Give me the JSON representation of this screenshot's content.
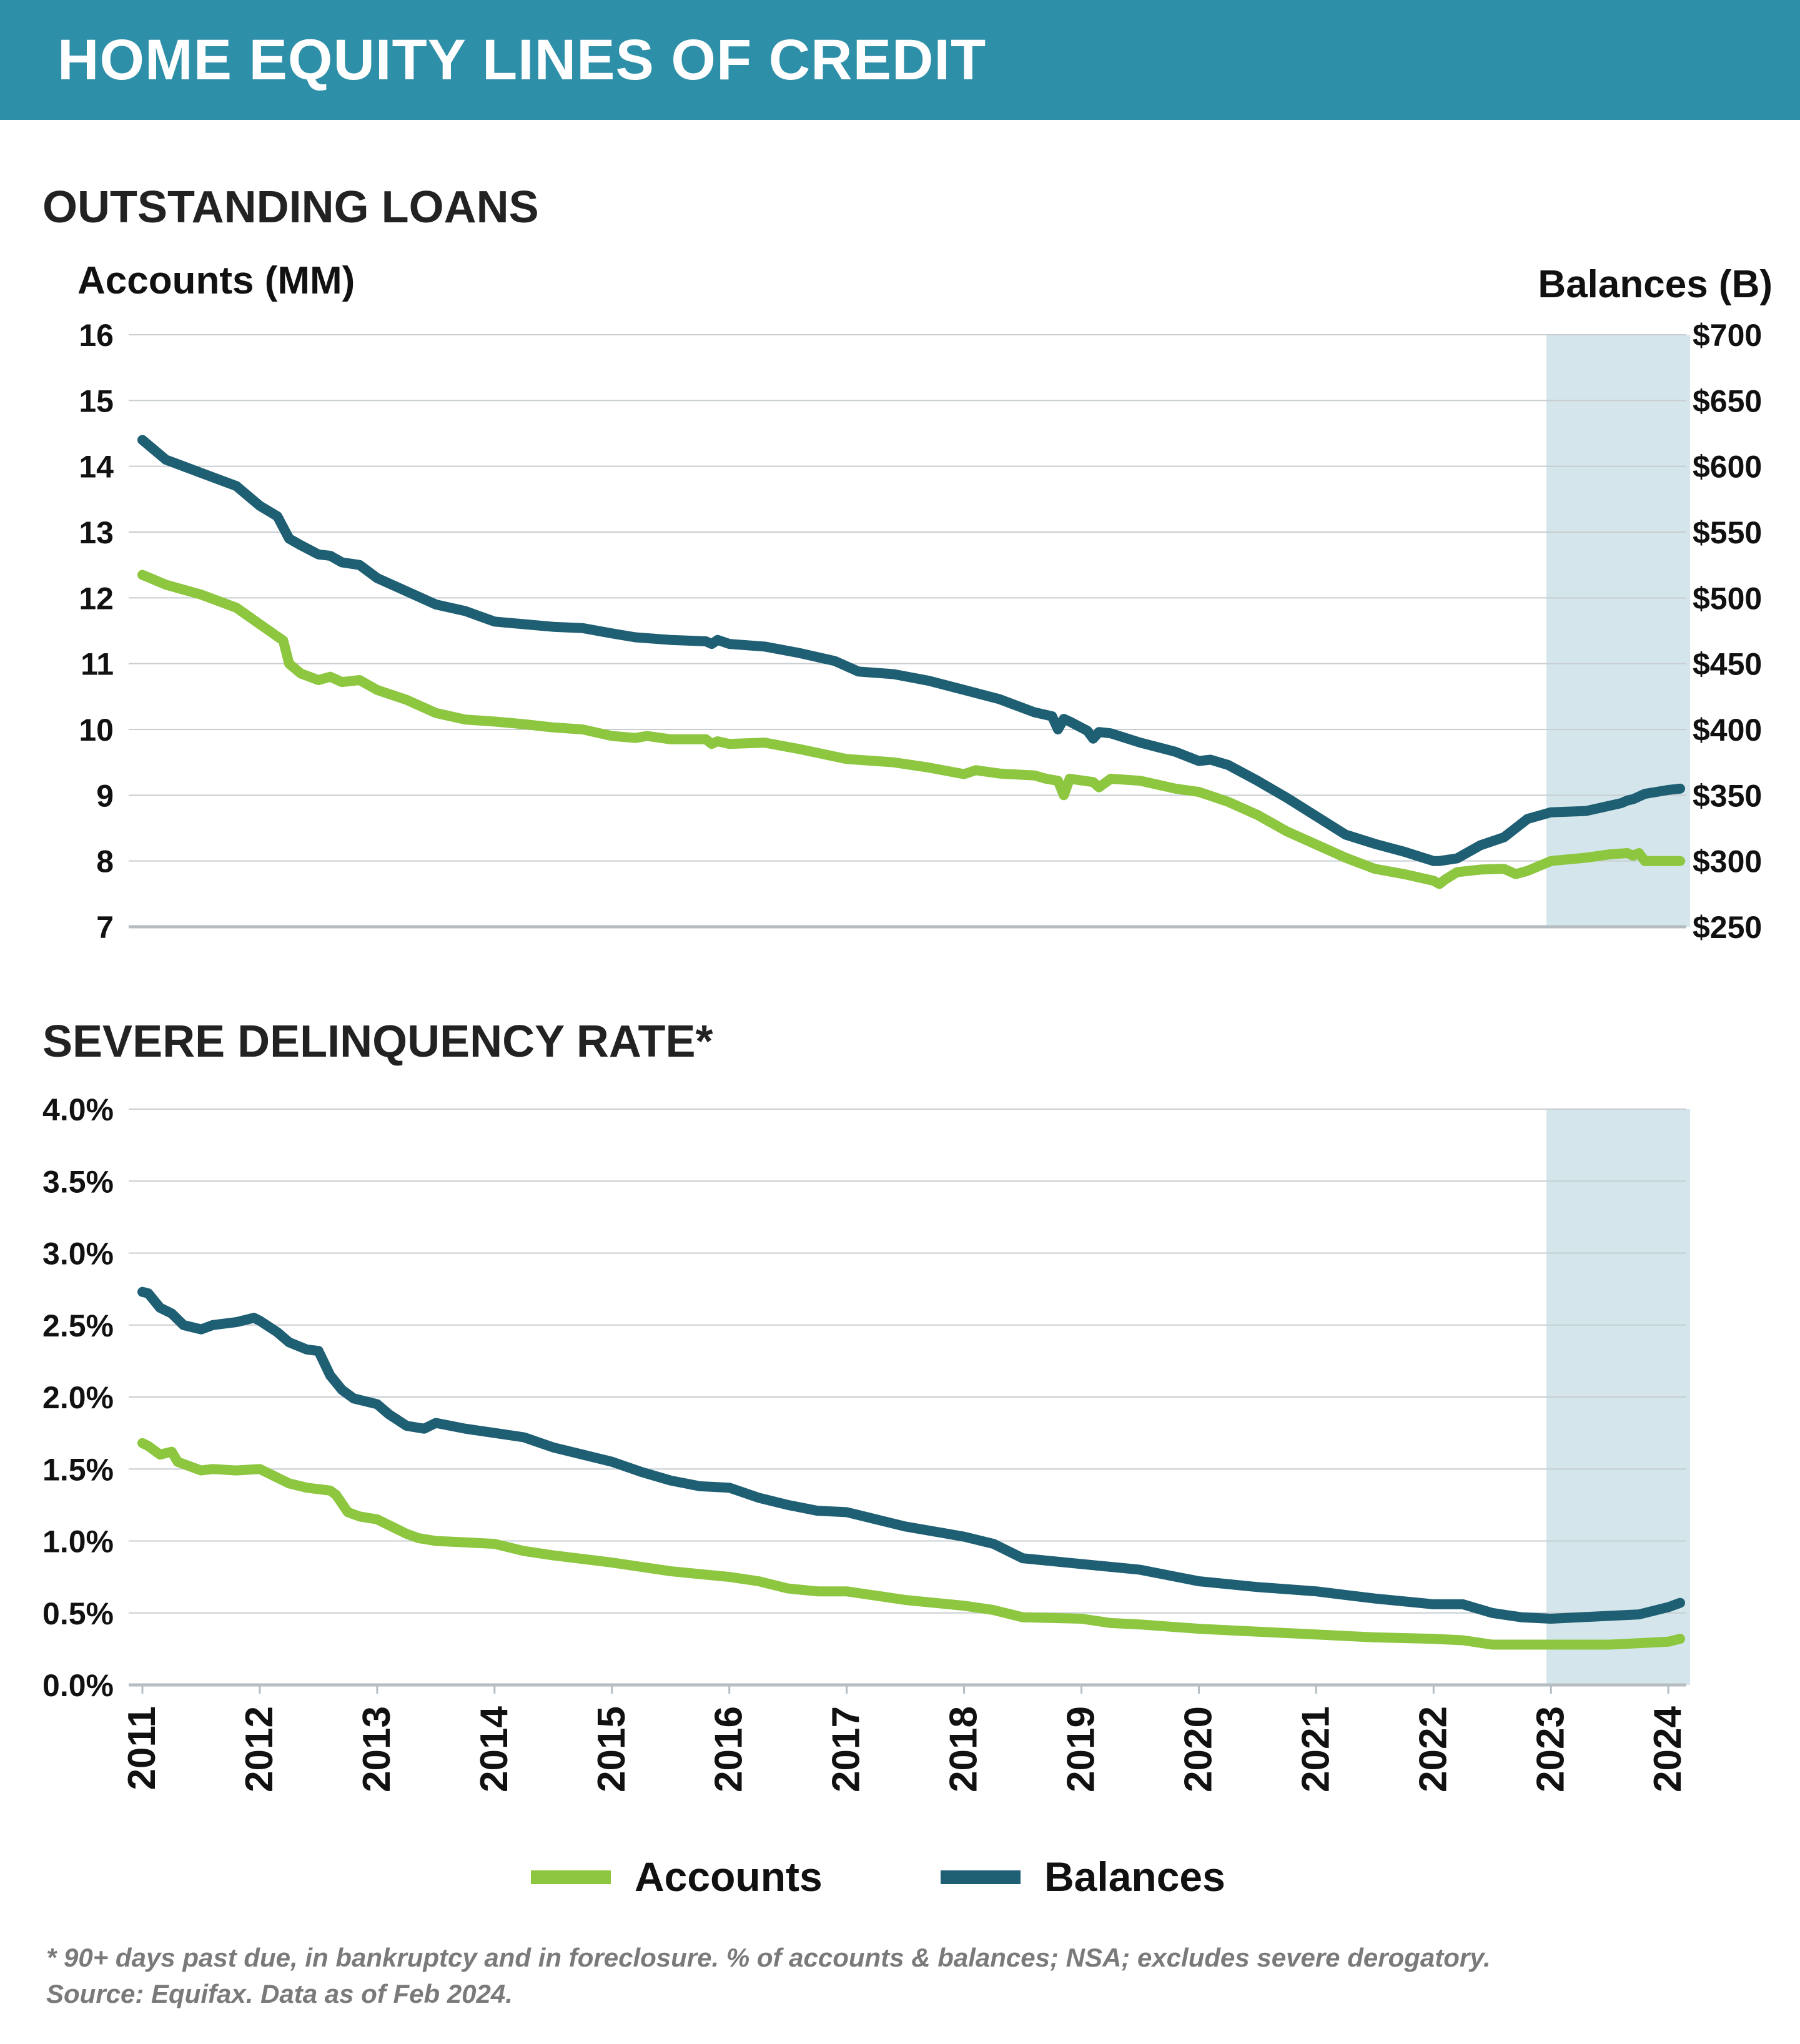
{
  "banner": {
    "title": "HOME EQUITY LINES OF CREDIT"
  },
  "colors": {
    "banner": "#2E8FA8",
    "accounts": "#8DC63F",
    "balances": "#1F5F73",
    "highlight": "#D4E6EC",
    "grid": "#C8CDD0"
  },
  "legend": {
    "accounts_label": "Accounts",
    "balances_label": "Balances",
    "placement": "bottom-center"
  },
  "footnote": {
    "line1": "* 90+ days past due, in bankruptcy and in foreclosure. % of accounts & balances; NSA; excludes severe derogatory.",
    "line2": "Source: Equifax. Data as of Feb 2024."
  },
  "chart_data": [
    {
      "type": "line",
      "title": "OUTSTANDING LOANS",
      "y_left_label": "Accounts (MM)",
      "y_right_label": "Balances (B)",
      "ylim_left": [
        7,
        16
      ],
      "ylim_right": [
        250,
        700
      ],
      "y_left_ticks": [
        "16",
        "15",
        "14",
        "13",
        "12",
        "11",
        "10",
        "9",
        "8",
        "7"
      ],
      "y_right_ticks": [
        "$700",
        "$650",
        "$600",
        "$550",
        "$500",
        "$450",
        "$400",
        "$350",
        "$300",
        "$250"
      ],
      "grid": true,
      "highlight_range": [
        2023.0,
        2024.1
      ],
      "series": [
        {
          "name": "Accounts",
          "axis": "left",
          "x": [
            2011.0,
            2011.2,
            2011.5,
            2011.8,
            2012.0,
            2012.2,
            2012.25,
            2012.35,
            2012.5,
            2012.6,
            2012.7,
            2012.85,
            2013.0,
            2013.25,
            2013.5,
            2013.75,
            2014.0,
            2014.25,
            2014.5,
            2014.75,
            2015.0,
            2015.2,
            2015.3,
            2015.5,
            2015.8,
            2015.85,
            2015.9,
            2016.0,
            2016.3,
            2016.6,
            2017.0,
            2017.4,
            2017.7,
            2018.0,
            2018.1,
            2018.3,
            2018.6,
            2018.7,
            2018.8,
            2018.85,
            2018.9,
            2019.1,
            2019.15,
            2019.25,
            2019.5,
            2019.8,
            2020.0,
            2020.25,
            2020.5,
            2020.75,
            2021.0,
            2021.25,
            2021.5,
            2021.75,
            2022.0,
            2022.05,
            2022.1,
            2022.2,
            2022.4,
            2022.6,
            2022.7,
            2022.8,
            2023.0,
            2023.3,
            2023.5,
            2023.65,
            2023.7,
            2023.75,
            2023.8,
            2024.0,
            2024.1
          ],
          "values": [
            12.35,
            12.2,
            12.05,
            11.85,
            11.6,
            11.35,
            11.0,
            10.85,
            10.75,
            10.8,
            10.72,
            10.75,
            10.6,
            10.45,
            10.25,
            10.15,
            10.12,
            10.08,
            10.03,
            10.0,
            9.9,
            9.87,
            9.9,
            9.85,
            9.85,
            9.78,
            9.82,
            9.78,
            9.8,
            9.7,
            9.55,
            9.5,
            9.42,
            9.32,
            9.38,
            9.33,
            9.3,
            9.25,
            9.22,
            9.0,
            9.25,
            9.2,
            9.12,
            9.25,
            9.22,
            9.1,
            9.05,
            8.9,
            8.7,
            8.45,
            8.25,
            8.05,
            7.88,
            7.8,
            7.7,
            7.65,
            7.72,
            7.83,
            7.87,
            7.88,
            7.8,
            7.85,
            8.0,
            8.05,
            8.1,
            8.12,
            8.08,
            8.12,
            8.0,
            8.0,
            8.0
          ]
        },
        {
          "name": "Balances",
          "axis": "right",
          "x": [
            2011.0,
            2011.2,
            2011.5,
            2011.8,
            2012.0,
            2012.15,
            2012.25,
            2012.35,
            2012.5,
            2012.6,
            2012.7,
            2012.85,
            2013.0,
            2013.25,
            2013.5,
            2013.75,
            2014.0,
            2014.25,
            2014.5,
            2014.75,
            2015.0,
            2015.2,
            2015.5,
            2015.8,
            2015.85,
            2015.9,
            2016.0,
            2016.3,
            2016.6,
            2016.9,
            2017.1,
            2017.4,
            2017.7,
            2018.0,
            2018.3,
            2018.6,
            2018.75,
            2018.8,
            2018.85,
            2018.9,
            2019.05,
            2019.1,
            2019.15,
            2019.25,
            2019.5,
            2019.8,
            2020.0,
            2020.1,
            2020.25,
            2020.5,
            2020.75,
            2021.0,
            2021.25,
            2021.5,
            2021.75,
            2022.0,
            2022.05,
            2022.2,
            2022.4,
            2022.6,
            2022.7,
            2022.8,
            2023.0,
            2023.3,
            2023.5,
            2023.6,
            2023.65,
            2023.7,
            2023.8,
            2024.0,
            2024.1
          ],
          "values": [
            620,
            605,
            595,
            585,
            570,
            562,
            545,
            540,
            533,
            532,
            527,
            525,
            515,
            505,
            495,
            490,
            482,
            480,
            478,
            477,
            473,
            470,
            468,
            467,
            465,
            468,
            465,
            463,
            458,
            452,
            444,
            442,
            437,
            430,
            423,
            413,
            410,
            400,
            408,
            406,
            399,
            393,
            398,
            397,
            390,
            383,
            376,
            377,
            373,
            361,
            348,
            334,
            320,
            313,
            307,
            300,
            300,
            302,
            312,
            318,
            325,
            332,
            337,
            338,
            342,
            344,
            346,
            347,
            351,
            354,
            355
          ]
        }
      ]
    },
    {
      "type": "line",
      "title": "SEVERE DELINQUENCY RATE*",
      "ylim": [
        0.0,
        4.0
      ],
      "y_ticks": [
        "4.0%",
        "3.5%",
        "3.0%",
        "2.5%",
        "2.0%",
        "1.5%",
        "1.0%",
        "0.5%",
        "0.0%"
      ],
      "x_ticks": [
        "2011",
        "2012",
        "2013",
        "2014",
        "2015",
        "2016",
        "2017",
        "2018",
        "2019",
        "2020",
        "2021",
        "2022",
        "2023",
        "2024"
      ],
      "grid": true,
      "highlight_range": [
        2023.0,
        2024.1
      ],
      "series": [
        {
          "name": "Accounts",
          "x": [
            2011.0,
            2011.05,
            2011.15,
            2011.25,
            2011.3,
            2011.5,
            2011.6,
            2011.8,
            2012.0,
            2012.25,
            2012.4,
            2012.5,
            2012.6,
            2012.65,
            2012.75,
            2012.85,
            2013.0,
            2013.25,
            2013.35,
            2013.5,
            2013.75,
            2014.0,
            2014.25,
            2014.5,
            2015.0,
            2015.5,
            2016.0,
            2016.25,
            2016.5,
            2016.75,
            2017.0,
            2017.25,
            2017.5,
            2018.0,
            2018.25,
            2018.5,
            2019.0,
            2019.25,
            2019.5,
            2020.0,
            2020.5,
            2021.0,
            2021.5,
            2022.0,
            2022.25,
            2022.5,
            2022.75,
            2023.0,
            2023.5,
            2024.0,
            2024.1
          ],
          "values": [
            1.68,
            1.66,
            1.6,
            1.62,
            1.55,
            1.49,
            1.5,
            1.49,
            1.5,
            1.4,
            1.37,
            1.36,
            1.35,
            1.32,
            1.2,
            1.17,
            1.15,
            1.05,
            1.02,
            1.0,
            0.99,
            0.98,
            0.93,
            0.9,
            0.85,
            0.79,
            0.75,
            0.72,
            0.67,
            0.65,
            0.65,
            0.62,
            0.59,
            0.55,
            0.52,
            0.47,
            0.46,
            0.43,
            0.42,
            0.39,
            0.37,
            0.35,
            0.33,
            0.32,
            0.31,
            0.28,
            0.28,
            0.28,
            0.28,
            0.3,
            0.32
          ]
        },
        {
          "name": "Balances",
          "x": [
            2011.0,
            2011.05,
            2011.15,
            2011.25,
            2011.35,
            2011.5,
            2011.6,
            2011.8,
            2011.95,
            2012.0,
            2012.15,
            2012.25,
            2012.4,
            2012.5,
            2012.6,
            2012.7,
            2012.8,
            2013.0,
            2013.1,
            2013.25,
            2013.4,
            2013.5,
            2013.75,
            2014.0,
            2014.25,
            2014.5,
            2014.75,
            2015.0,
            2015.25,
            2015.5,
            2015.75,
            2016.0,
            2016.25,
            2016.5,
            2016.75,
            2017.0,
            2017.25,
            2017.5,
            2018.0,
            2018.25,
            2018.5,
            2019.0,
            2019.25,
            2019.5,
            2019.75,
            2020.0,
            2020.5,
            2021.0,
            2021.5,
            2022.0,
            2022.25,
            2022.5,
            2022.75,
            2023.0,
            2023.5,
            2023.75,
            2024.0,
            2024.1
          ],
          "values": [
            2.73,
            2.72,
            2.62,
            2.58,
            2.5,
            2.47,
            2.5,
            2.52,
            2.55,
            2.53,
            2.45,
            2.38,
            2.33,
            2.32,
            2.15,
            2.05,
            1.99,
            1.95,
            1.88,
            1.8,
            1.78,
            1.82,
            1.78,
            1.75,
            1.72,
            1.65,
            1.6,
            1.55,
            1.48,
            1.42,
            1.38,
            1.37,
            1.3,
            1.25,
            1.21,
            1.2,
            1.15,
            1.1,
            1.03,
            0.98,
            0.88,
            0.84,
            0.82,
            0.8,
            0.76,
            0.72,
            0.68,
            0.65,
            0.6,
            0.56,
            0.56,
            0.5,
            0.47,
            0.46,
            0.48,
            0.49,
            0.54,
            0.57
          ]
        }
      ]
    }
  ]
}
